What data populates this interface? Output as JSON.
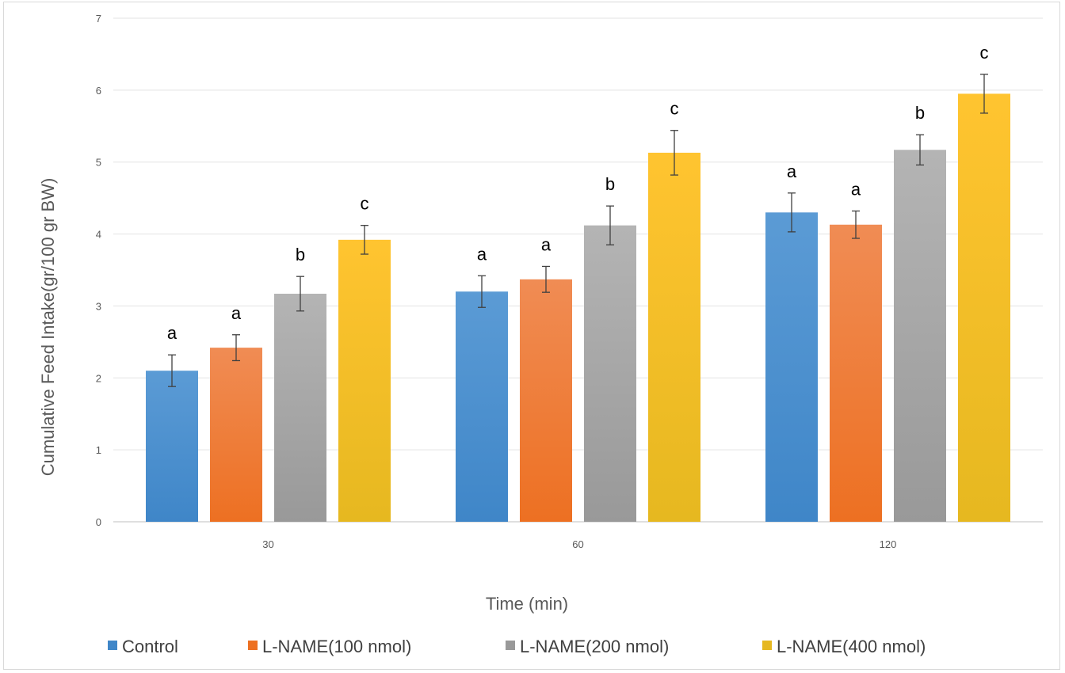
{
  "chart_data": {
    "type": "bar",
    "title": "",
    "xlabel": "Time (min)",
    "ylabel": "Cumulative Feed Intake(gr/100 gr BW)",
    "categories": [
      "30",
      "60",
      "120"
    ],
    "ylim": [
      0,
      7
    ],
    "yticks": [
      "0",
      "1",
      "2",
      "3",
      "4",
      "5",
      "6",
      "7"
    ],
    "grid": true,
    "legend_position": "bottom",
    "series": [
      {
        "name": "Control",
        "color": "#5b9bd5",
        "color_dark": "#3f86c8",
        "values": [
          2.1,
          3.2,
          4.3
        ],
        "errors": [
          0.22,
          0.22,
          0.27
        ],
        "labels": [
          "a",
          "a",
          "a"
        ]
      },
      {
        "name": "L-NAME(100 nmol)",
        "color": "#f08c54",
        "color_dark": "#ed7022",
        "values": [
          2.42,
          3.37,
          4.13
        ],
        "errors": [
          0.18,
          0.18,
          0.19
        ],
        "labels": [
          "a",
          "a",
          "a"
        ]
      },
      {
        "name": "L-NAME(200 nmol)",
        "color": "#b4b4b4",
        "color_dark": "#999999",
        "values": [
          3.17,
          4.12,
          5.17
        ],
        "errors": [
          0.24,
          0.27,
          0.21
        ],
        "labels": [
          "b",
          "b",
          "b"
        ]
      },
      {
        "name": "L-NAME(400 nmol)",
        "color": "#ffc430",
        "color_dark": "#e6b820",
        "values": [
          3.92,
          5.13,
          5.95
        ],
        "errors": [
          0.2,
          0.31,
          0.27
        ],
        "labels": [
          "c",
          "c",
          "c"
        ]
      }
    ]
  }
}
